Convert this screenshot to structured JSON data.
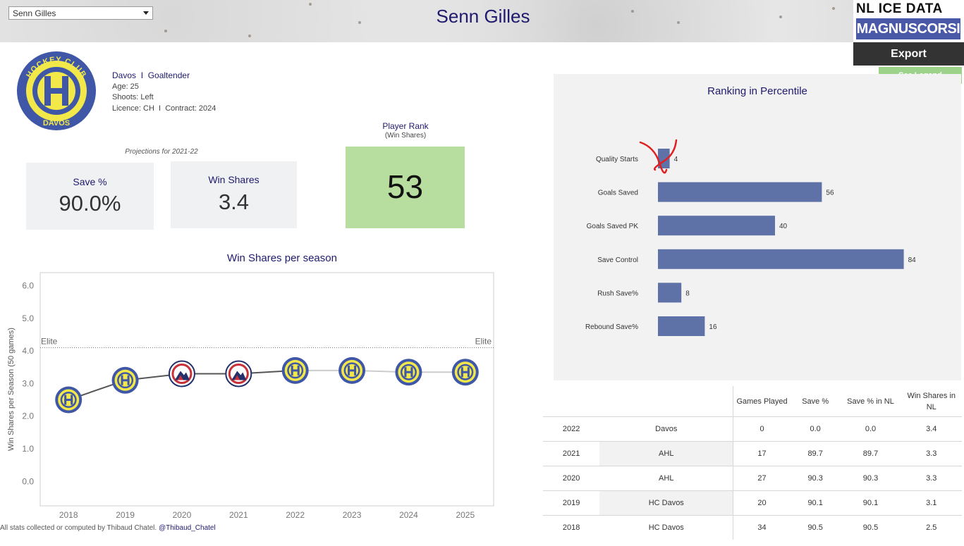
{
  "header": {
    "player_select": "Senn Gilles",
    "title": "Senn Gilles",
    "brand_line1": "NL ICE DATA",
    "brand_line2": "MAGNUSCORSI"
  },
  "actions": {
    "export_label": "Export",
    "legend_label": "See Legend"
  },
  "team_logo": {
    "top_text": "HOCKEY CLUB",
    "bottom_text": "DAVOS",
    "letter": "H"
  },
  "player": {
    "team": "Davos",
    "separator": "I",
    "position": "Goaltender",
    "age": "Age: 25",
    "shoots": "Shoots: Left",
    "licence": "Licence: CH  I  Contract: 2024"
  },
  "projections": {
    "caption": "Projections for 2021-22",
    "save_label": "Save %",
    "save_value": "90.0%",
    "ws_label": "Win Shares",
    "ws_value": "3.4"
  },
  "rank": {
    "title": "Player Rank",
    "subtitle": "(Win Shares)",
    "value": "53"
  },
  "ranking": {
    "title": "Ranking in Percentile"
  },
  "win_shares": {
    "title": "Win Shares per season"
  },
  "chart_data": [
    {
      "type": "line",
      "title": "Win Shares per season",
      "ylabel": "Win Shares per Season (50 games)",
      "x": [
        "2018",
        "2019",
        "2020",
        "2021",
        "2022",
        "2023",
        "2024",
        "2025"
      ],
      "series": [
        {
          "values": [
            2.5,
            3.1,
            3.3,
            3.3,
            3.4,
            3.4,
            3.35,
            3.35
          ]
        }
      ],
      "point_teams": [
        "davos",
        "davos",
        "ahl",
        "ahl",
        "davos",
        "davos",
        "davos",
        "davos"
      ],
      "yticks": [
        "0.0",
        "1.0",
        "2.0",
        "3.0",
        "4.0",
        "5.0",
        "6.0"
      ],
      "ylim": [
        -0.75,
        6.4
      ],
      "reference_line": {
        "label": "Elite",
        "value": 4.1
      },
      "segment_colors": {
        "history": "#555555",
        "future": "#cccccc"
      },
      "grid": false
    },
    {
      "type": "bar",
      "title": "Ranking in Percentile",
      "orientation": "horizontal",
      "categories": [
        "Quality Starts",
        "Goals Saved",
        "Goals Saved PK",
        "Save Control",
        "Rush Save%",
        "Rebound Save%"
      ],
      "values": [
        4,
        56,
        40,
        84,
        8,
        16
      ],
      "xlim": [
        0,
        100
      ],
      "bar_color": "#5f72a8",
      "flagged_category": "Quality Starts",
      "flag_color": "#e02020"
    }
  ],
  "table": {
    "headers": [
      "",
      "",
      "Games Played",
      "Save %",
      "Save % in NL",
      "Win Shares in NL"
    ],
    "rows": [
      [
        "2022",
        "Davos",
        "0",
        "0.0",
        "0.0",
        "3.4"
      ],
      [
        "2021",
        "AHL",
        "17",
        "89.7",
        "89.7",
        "3.3"
      ],
      [
        "2020",
        "AHL",
        "27",
        "90.3",
        "90.3",
        "3.3"
      ],
      [
        "2019",
        "HC Davos",
        "20",
        "90.1",
        "90.1",
        "3.1"
      ],
      [
        "2018",
        "HC Davos",
        "34",
        "90.5",
        "90.5",
        "2.5"
      ]
    ]
  },
  "footer": {
    "text": "All stats collected or computed by Thibaud Chatel. ",
    "handle": "@Thibaud_Chatel"
  },
  "colors": {
    "title_navy": "#1f1a6e",
    "davos_blue": "#3f57a6",
    "davos_yellow": "#f2e84a",
    "ahl_red": "#c8313a",
    "bar": "#5f72a8",
    "rank_green": "#b7dd9f"
  }
}
